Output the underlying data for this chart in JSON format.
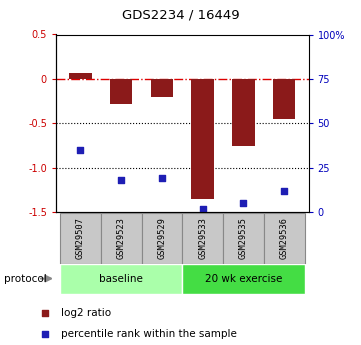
{
  "title": "GDS2234 / 16449",
  "samples": [
    "GSM29507",
    "GSM29523",
    "GSM29529",
    "GSM29533",
    "GSM29535",
    "GSM29536"
  ],
  "log2_ratio": [
    0.07,
    -0.28,
    -0.2,
    -1.35,
    -0.75,
    -0.45
  ],
  "percentile_rank": [
    35,
    18,
    19,
    2,
    5,
    12
  ],
  "bar_color": "#8B1A1A",
  "dot_color": "#1E1EB4",
  "ylim_left": [
    -1.5,
    0.5
  ],
  "ylim_right": [
    0,
    100
  ],
  "yticks_left": [
    0.5,
    0,
    -0.5,
    -1.0,
    -1.5
  ],
  "yticks_right": [
    100,
    75,
    50,
    25,
    0
  ],
  "ytick_labels_right": [
    "100%",
    "75",
    "50",
    "25",
    "0"
  ],
  "groups": [
    {
      "label": "baseline",
      "indices": [
        0,
        1,
        2
      ],
      "color": "#AAFFAA"
    },
    {
      "label": "20 wk exercise",
      "indices": [
        3,
        4,
        5
      ],
      "color": "#44DD44"
    }
  ],
  "protocol_label": "protocol",
  "legend_log2": "log2 ratio",
  "legend_pct": "percentile rank within the sample",
  "hline_zero_color": "#DD0000",
  "hline_dotted_color": "#000000",
  "bar_width": 0.55,
  "sample_box_color": "#C8C8C8",
  "sample_box_edge": "#888888"
}
